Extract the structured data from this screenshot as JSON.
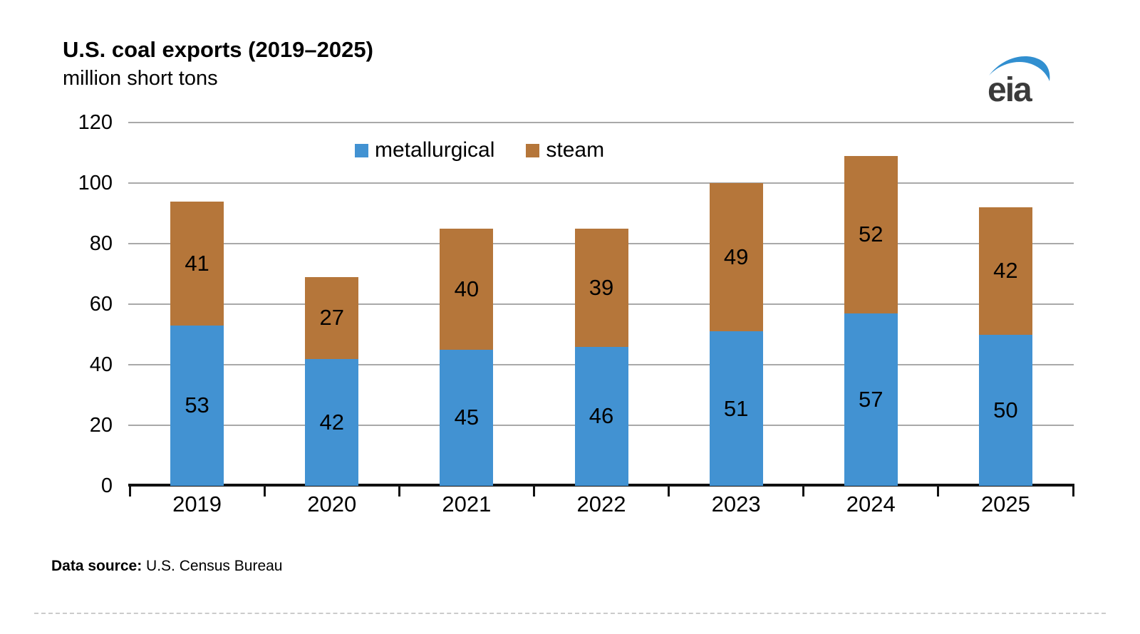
{
  "header": {
    "title": "U.S. coal exports (2019–2025)",
    "subtitle": "million short tons"
  },
  "logo": {
    "text": "eia",
    "swoosh_color": "#318fd0",
    "text_color": "#3b3b3b"
  },
  "colors": {
    "metallurgical": "#4292d2",
    "steam": "#b5763a",
    "gridline": "#a9a9a9",
    "axis": "#111111"
  },
  "chart_data": {
    "type": "bar",
    "stacked": true,
    "title": "U.S. coal exports (2019–2025)",
    "subtitle": "million short tons",
    "categories": [
      "2019",
      "2020",
      "2021",
      "2022",
      "2023",
      "2024",
      "2025"
    ],
    "series": [
      {
        "name": "metallurgical",
        "color": "#4292d2",
        "values": [
          53,
          42,
          45,
          46,
          51,
          57,
          50
        ]
      },
      {
        "name": "steam",
        "color": "#b5763a",
        "values": [
          41,
          27,
          40,
          39,
          49,
          52,
          42
        ]
      }
    ],
    "totals": [
      94,
      69,
      85,
      85,
      100,
      109,
      92
    ],
    "ylim": [
      0,
      120
    ],
    "yticks": [
      0,
      20,
      40,
      60,
      80,
      100,
      120
    ],
    "grid": "horizontal",
    "legend_position": "top-center",
    "value_labels": "inside-center",
    "xlabel": "",
    "ylabel": "million short tons"
  },
  "footer": {
    "source_label": "Data source:",
    "source_value": " U.S. Census Bureau"
  }
}
